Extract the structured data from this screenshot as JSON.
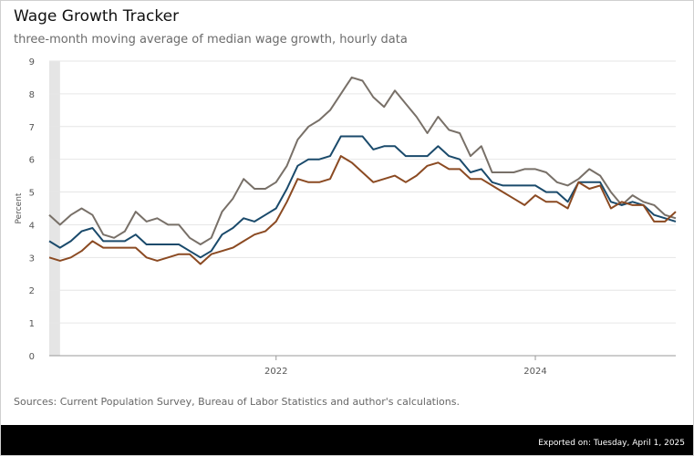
{
  "header": {
    "title": "Wage Growth Tracker",
    "subtitle": "three-month moving average of median wage growth, hourly data"
  },
  "footer": {
    "source": "Sources: Current Population Survey, Bureau of Labor Statistics and author's calculations.",
    "export": "Exported on: Tuesday, April 1, 2025"
  },
  "colors": {
    "series_gray": "#787068",
    "series_blue": "#1a4a6b",
    "series_brown": "#8b4a22",
    "recession_band": "#e5e5e5"
  },
  "chart_data": {
    "type": "line",
    "ylabel": "Percent",
    "xlabel": "",
    "ylim": [
      0,
      9
    ],
    "yticks": [
      0,
      1,
      2,
      3,
      4,
      5,
      6,
      7,
      8,
      9
    ],
    "x_range": [
      "2020-04",
      "2025-02"
    ],
    "x_tick_labels": [
      {
        "x": "2022-01",
        "label": "2022"
      },
      {
        "x": "2024-01",
        "label": "2024"
      }
    ],
    "shaded_period": [
      "2020-04",
      "2020-05"
    ],
    "grid": true,
    "legend": "none",
    "x": [
      "2020-04",
      "2020-05",
      "2020-06",
      "2020-07",
      "2020-08",
      "2020-09",
      "2020-10",
      "2020-11",
      "2020-12",
      "2021-01",
      "2021-02",
      "2021-03",
      "2021-04",
      "2021-05",
      "2021-06",
      "2021-07",
      "2021-08",
      "2021-09",
      "2021-10",
      "2021-11",
      "2021-12",
      "2022-01",
      "2022-02",
      "2022-03",
      "2022-04",
      "2022-05",
      "2022-06",
      "2022-07",
      "2022-08",
      "2022-09",
      "2022-10",
      "2022-11",
      "2022-12",
      "2023-01",
      "2023-02",
      "2023-03",
      "2023-04",
      "2023-05",
      "2023-06",
      "2023-07",
      "2023-08",
      "2023-09",
      "2023-10",
      "2023-11",
      "2023-12",
      "2024-01",
      "2024-02",
      "2024-03",
      "2024-04",
      "2024-05",
      "2024-06",
      "2024-07",
      "2024-08",
      "2024-09",
      "2024-10",
      "2024-11",
      "2024-12",
      "2025-01",
      "2025-02"
    ],
    "series": [
      {
        "values": [
          4.3,
          4.0,
          4.3,
          4.5,
          4.3,
          3.7,
          3.6,
          3.8,
          4.4,
          4.1,
          4.2,
          4.0,
          4.0,
          3.6,
          3.4,
          3.6,
          4.4,
          4.8,
          5.4,
          5.1,
          5.1,
          5.3,
          5.8,
          6.6,
          7.0,
          7.2,
          7.5,
          8.0,
          8.5,
          8.4,
          7.9,
          7.6,
          8.1,
          7.7,
          7.3,
          6.8,
          7.3,
          6.9,
          6.8,
          6.1,
          6.4,
          5.6,
          5.6,
          5.6,
          5.7,
          5.7,
          5.6,
          5.3,
          5.2,
          5.4,
          5.7,
          5.5,
          5.0,
          4.6,
          4.9,
          4.7,
          4.6,
          4.3,
          4.2
        ]
      },
      {
        "values": [
          3.5,
          3.3,
          3.5,
          3.8,
          3.9,
          3.5,
          3.5,
          3.5,
          3.7,
          3.4,
          3.4,
          3.4,
          3.4,
          3.2,
          3.0,
          3.2,
          3.7,
          3.9,
          4.2,
          4.1,
          4.3,
          4.5,
          5.1,
          5.8,
          6.0,
          6.0,
          6.1,
          6.7,
          6.7,
          6.7,
          6.3,
          6.4,
          6.4,
          6.1,
          6.1,
          6.1,
          6.4,
          6.1,
          6.0,
          5.6,
          5.7,
          5.3,
          5.2,
          5.2,
          5.2,
          5.2,
          5.0,
          5.0,
          4.7,
          5.3,
          5.3,
          5.3,
          4.7,
          4.6,
          4.7,
          4.6,
          4.3,
          4.2,
          4.1
        ]
      },
      {
        "values": [
          3.0,
          2.9,
          3.0,
          3.2,
          3.5,
          3.3,
          3.3,
          3.3,
          3.3,
          3.0,
          2.9,
          3.0,
          3.1,
          3.1,
          2.8,
          3.1,
          3.2,
          3.3,
          3.5,
          3.7,
          3.8,
          4.1,
          4.7,
          5.4,
          5.3,
          5.3,
          5.4,
          6.1,
          5.9,
          5.6,
          5.3,
          5.4,
          5.5,
          5.3,
          5.5,
          5.8,
          5.9,
          5.7,
          5.7,
          5.4,
          5.4,
          5.2,
          5.0,
          4.8,
          4.6,
          4.9,
          4.7,
          4.7,
          4.5,
          5.3,
          5.1,
          5.2,
          4.5,
          4.7,
          4.6,
          4.6,
          4.1,
          4.1,
          4.4
        ]
      }
    ]
  }
}
